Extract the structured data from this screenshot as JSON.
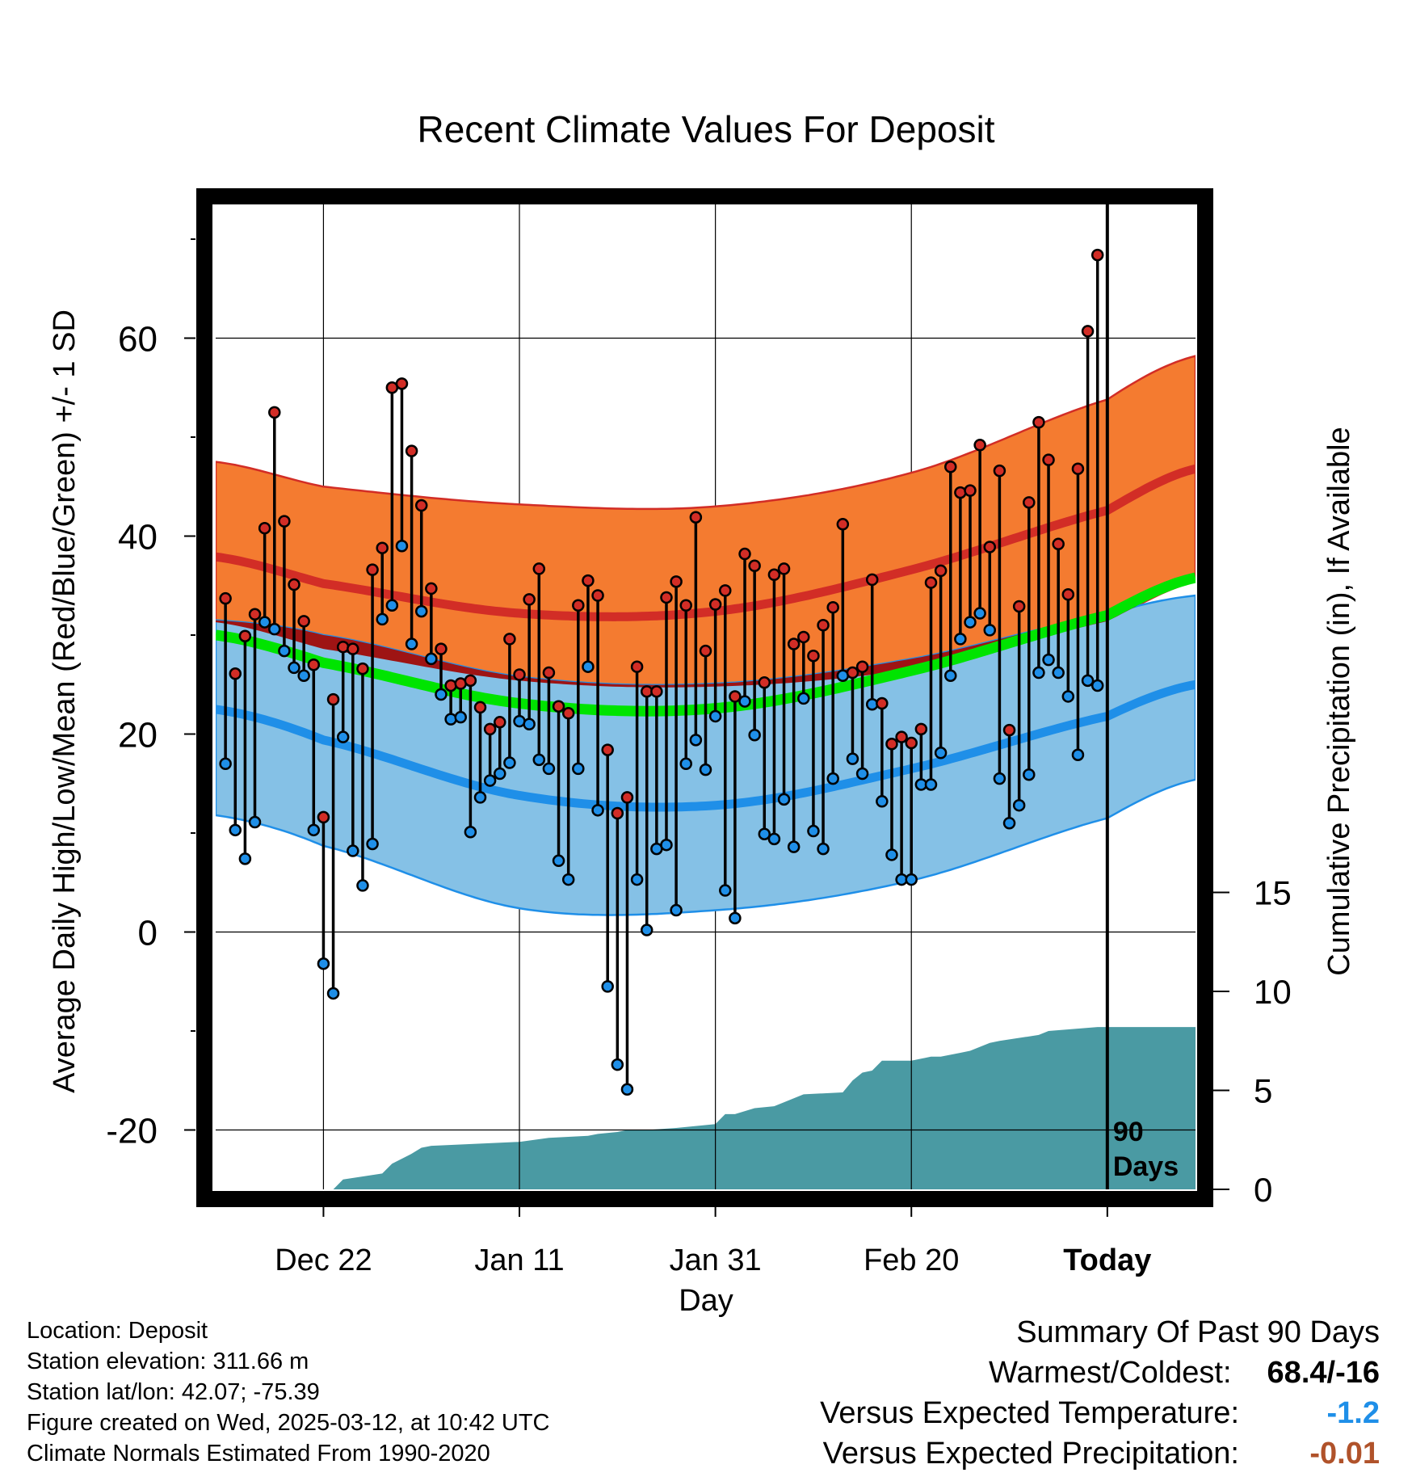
{
  "chart_data": {
    "type": "line",
    "title": "Recent Climate Values For Deposit",
    "xlabel": "Day",
    "ylabel": "Average Daily High/Low/Mean (Red/Blue/Green) +/- 1 SD",
    "y2label": "Cumulative Precipitation (in), If Available",
    "xtick_labels": [
      "Dec 22",
      "Jan 11",
      "Jan 31",
      "Feb 20",
      "Today"
    ],
    "xtick_days": [
      -80,
      -60,
      -40,
      -20,
      0
    ],
    "xlim": [
      -91,
      9
    ],
    "ylim": [
      -26,
      74
    ],
    "yticks": [
      -20,
      0,
      20,
      40,
      60
    ],
    "y2lim": [
      0,
      50
    ],
    "y2ticks": [
      0,
      5,
      10,
      15
    ],
    "today_marker_label": [
      "90",
      "Days"
    ],
    "grid": true,
    "normals": {
      "days": [
        -91,
        -80,
        -60,
        -40,
        -20,
        0,
        9
      ],
      "high_mean": [
        37.9,
        35.2,
        32.2,
        32.4,
        36.6,
        42.6,
        46.8
      ],
      "high_sd_upper": [
        47.5,
        45.0,
        43.2,
        43.0,
        46.4,
        53.8,
        58.2
      ],
      "high_sd_lower": [
        31.3,
        28.6,
        25.4,
        24.8,
        26.6,
        31.4,
        35.4
      ],
      "low_mean": [
        22.5,
        19.4,
        13.8,
        12.8,
        16.5,
        21.8,
        25.0
      ],
      "low_sd_upper": [
        31.5,
        30.0,
        25.8,
        25.1,
        27.6,
        32.0,
        34.0
      ],
      "low_sd_lower": [
        11.8,
        8.7,
        2.4,
        2.2,
        5.2,
        11.5,
        15.4
      ],
      "avg_mean": [
        30.0,
        27.2,
        23.1,
        22.6,
        26.4,
        32.0,
        35.8
      ]
    },
    "series": [
      {
        "name": "High",
        "days": [
          -90,
          -89,
          -88,
          -87,
          -86,
          -85,
          -84,
          -83,
          -82,
          -81,
          -80,
          -79,
          -78,
          -77,
          -76,
          -75,
          -74,
          -73,
          -72,
          -71,
          -70,
          -69,
          -68,
          -67,
          -66,
          -65,
          -64,
          -63,
          -62,
          -61,
          -60,
          -59,
          -58,
          -57,
          -56,
          -55,
          -54,
          -53,
          -52,
          -51,
          -50,
          -49,
          -48,
          -47,
          -46,
          -45,
          -44,
          -43,
          -42,
          -41,
          -40,
          -39,
          -38,
          -37,
          -36,
          -35,
          -34,
          -33,
          -32,
          -31,
          -30,
          -29,
          -28,
          -27,
          -26,
          -25,
          -24,
          -23,
          -22,
          -21,
          -20,
          -19,
          -18,
          -17,
          -16,
          -15,
          -14,
          -13,
          -12,
          -11,
          -10,
          -9,
          -8,
          -7,
          -6,
          -5,
          -4,
          -3,
          -2,
          -1
        ],
        "values": [
          33.7,
          26.1,
          29.9,
          32.1,
          40.8,
          52.5,
          41.5,
          35.1,
          31.4,
          27.0,
          11.6,
          23.5,
          28.8,
          28.6,
          26.6,
          36.6,
          38.8,
          55.0,
          55.4,
          48.6,
          43.1,
          34.7,
          28.6,
          24.9,
          25.1,
          25.4,
          22.7,
          20.5,
          21.2,
          29.6,
          26.0,
          33.6,
          36.7,
          26.2,
          22.8,
          22.1,
          33.0,
          35.5,
          34.0,
          18.4,
          12.0,
          13.6,
          26.8,
          24.3,
          24.3,
          33.8,
          35.4,
          33.0,
          41.9,
          28.4,
          33.1,
          34.5,
          23.8,
          38.2,
          37.0,
          25.2,
          36.1,
          36.7,
          29.1,
          29.8,
          27.9,
          31.0,
          32.8,
          41.2,
          26.2,
          26.8,
          35.6,
          23.1,
          19.0,
          19.7,
          19.1,
          20.5,
          35.3,
          36.5,
          47.0,
          44.4,
          44.6,
          49.2,
          38.9,
          46.6,
          20.4,
          32.9,
          43.4,
          51.5,
          47.7,
          39.2,
          34.1,
          46.8,
          60.7,
          68.4
        ]
      },
      {
        "name": "Low",
        "days": [
          -90,
          -89,
          -88,
          -87,
          -86,
          -85,
          -84,
          -83,
          -82,
          -81,
          -80,
          -79,
          -78,
          -77,
          -76,
          -75,
          -74,
          -73,
          -72,
          -71,
          -70,
          -69,
          -68,
          -67,
          -66,
          -65,
          -64,
          -63,
          -62,
          -61,
          -60,
          -59,
          -58,
          -57,
          -56,
          -55,
          -54,
          -53,
          -52,
          -51,
          -50,
          -49,
          -48,
          -47,
          -46,
          -45,
          -44,
          -43,
          -42,
          -41,
          -40,
          -39,
          -38,
          -37,
          -36,
          -35,
          -34,
          -33,
          -32,
          -31,
          -30,
          -29,
          -28,
          -27,
          -26,
          -25,
          -24,
          -23,
          -22,
          -21,
          -20,
          -19,
          -18,
          -17,
          -16,
          -15,
          -14,
          -13,
          -12,
          -11,
          -10,
          -9,
          -8,
          -7,
          -6,
          -5,
          -4,
          -3,
          -2,
          -1
        ],
        "values": [
          17.0,
          10.3,
          7.4,
          11.1,
          31.3,
          30.6,
          28.4,
          26.7,
          25.9,
          10.3,
          -3.2,
          -6.2,
          19.7,
          8.2,
          4.7,
          8.9,
          31.6,
          33.0,
          39.0,
          29.1,
          32.4,
          27.6,
          24.0,
          21.5,
          21.7,
          10.1,
          13.6,
          15.3,
          16.0,
          17.1,
          21.3,
          21.0,
          17.4,
          16.5,
          7.2,
          5.3,
          16.5,
          26.8,
          12.3,
          -5.5,
          -13.4,
          -15.9,
          5.3,
          0.2,
          8.4,
          8.8,
          2.2,
          17.0,
          19.4,
          16.4,
          21.8,
          4.2,
          1.4,
          23.3,
          19.9,
          9.9,
          9.4,
          13.4,
          8.6,
          23.6,
          10.2,
          8.4,
          15.5,
          25.9,
          17.5,
          16.0,
          23.0,
          13.2,
          7.8,
          5.3,
          5.3,
          14.9,
          14.9,
          18.1,
          25.9,
          29.6,
          31.3,
          32.2,
          30.5,
          15.5,
          11.0,
          12.8,
          15.9,
          26.2,
          27.5,
          26.2,
          23.8,
          17.9,
          25.4,
          24.9
        ]
      }
    ],
    "precipitation": {
      "days": [
        -90,
        -79,
        -78,
        -74,
        -73,
        -71,
        -70,
        -69,
        -60,
        -57,
        -53,
        -52,
        -50,
        -49,
        -47,
        -44,
        -40,
        -39,
        -38,
        -36,
        -34,
        -33,
        -31,
        -27,
        -26,
        -25,
        -24,
        -23,
        -20,
        -18,
        -17,
        -16,
        -15,
        -14,
        -12,
        -11,
        -7,
        -6,
        -1,
        9
      ],
      "values": [
        0,
        0,
        0.5,
        0.8,
        1.3,
        1.8,
        2.1,
        2.2,
        2.4,
        2.6,
        2.7,
        2.8,
        2.9,
        3.0,
        3.0,
        3.1,
        3.3,
        3.8,
        3.8,
        4.1,
        4.2,
        4.4,
        4.8,
        4.9,
        5.5,
        5.9,
        6.0,
        6.5,
        6.5,
        6.7,
        6.7,
        6.8,
        6.9,
        7.0,
        7.4,
        7.5,
        7.8,
        8.0,
        8.2,
        8.2
      ]
    }
  },
  "footer": {
    "lines": [
      "Location: Deposit",
      "Station elevation: 311.66 m",
      "Station lat/lon: 42.07; -75.39",
      "Figure created on Wed, 2025-03-12, at 10:42 UTC",
      "Climate Normals Estimated From 1990-2020"
    ]
  },
  "summary": {
    "title": "Summary Of Past 90 Days",
    "warmest_label": "Warmest/Coldest:",
    "warmest_value": "68.4/-16",
    "temp_label": "Versus Expected Temperature:",
    "temp_value": "-1.2",
    "temp_color": "#1f8fe8",
    "precip_label": "Versus Expected Precipitation:",
    "precip_value": "-0.01",
    "precip_color": "#b0522a"
  },
  "colors": {
    "high_band": "#f47b30",
    "high_line": "#d22d26",
    "low_band": "#85c1e6",
    "low_line": "#1f8fe8",
    "mean_line": "#00e400",
    "overlap": "#9e1414",
    "precip_fill": "#4a9aa3",
    "high_dot": "#d22d26",
    "low_dot": "#1f8fe8"
  }
}
